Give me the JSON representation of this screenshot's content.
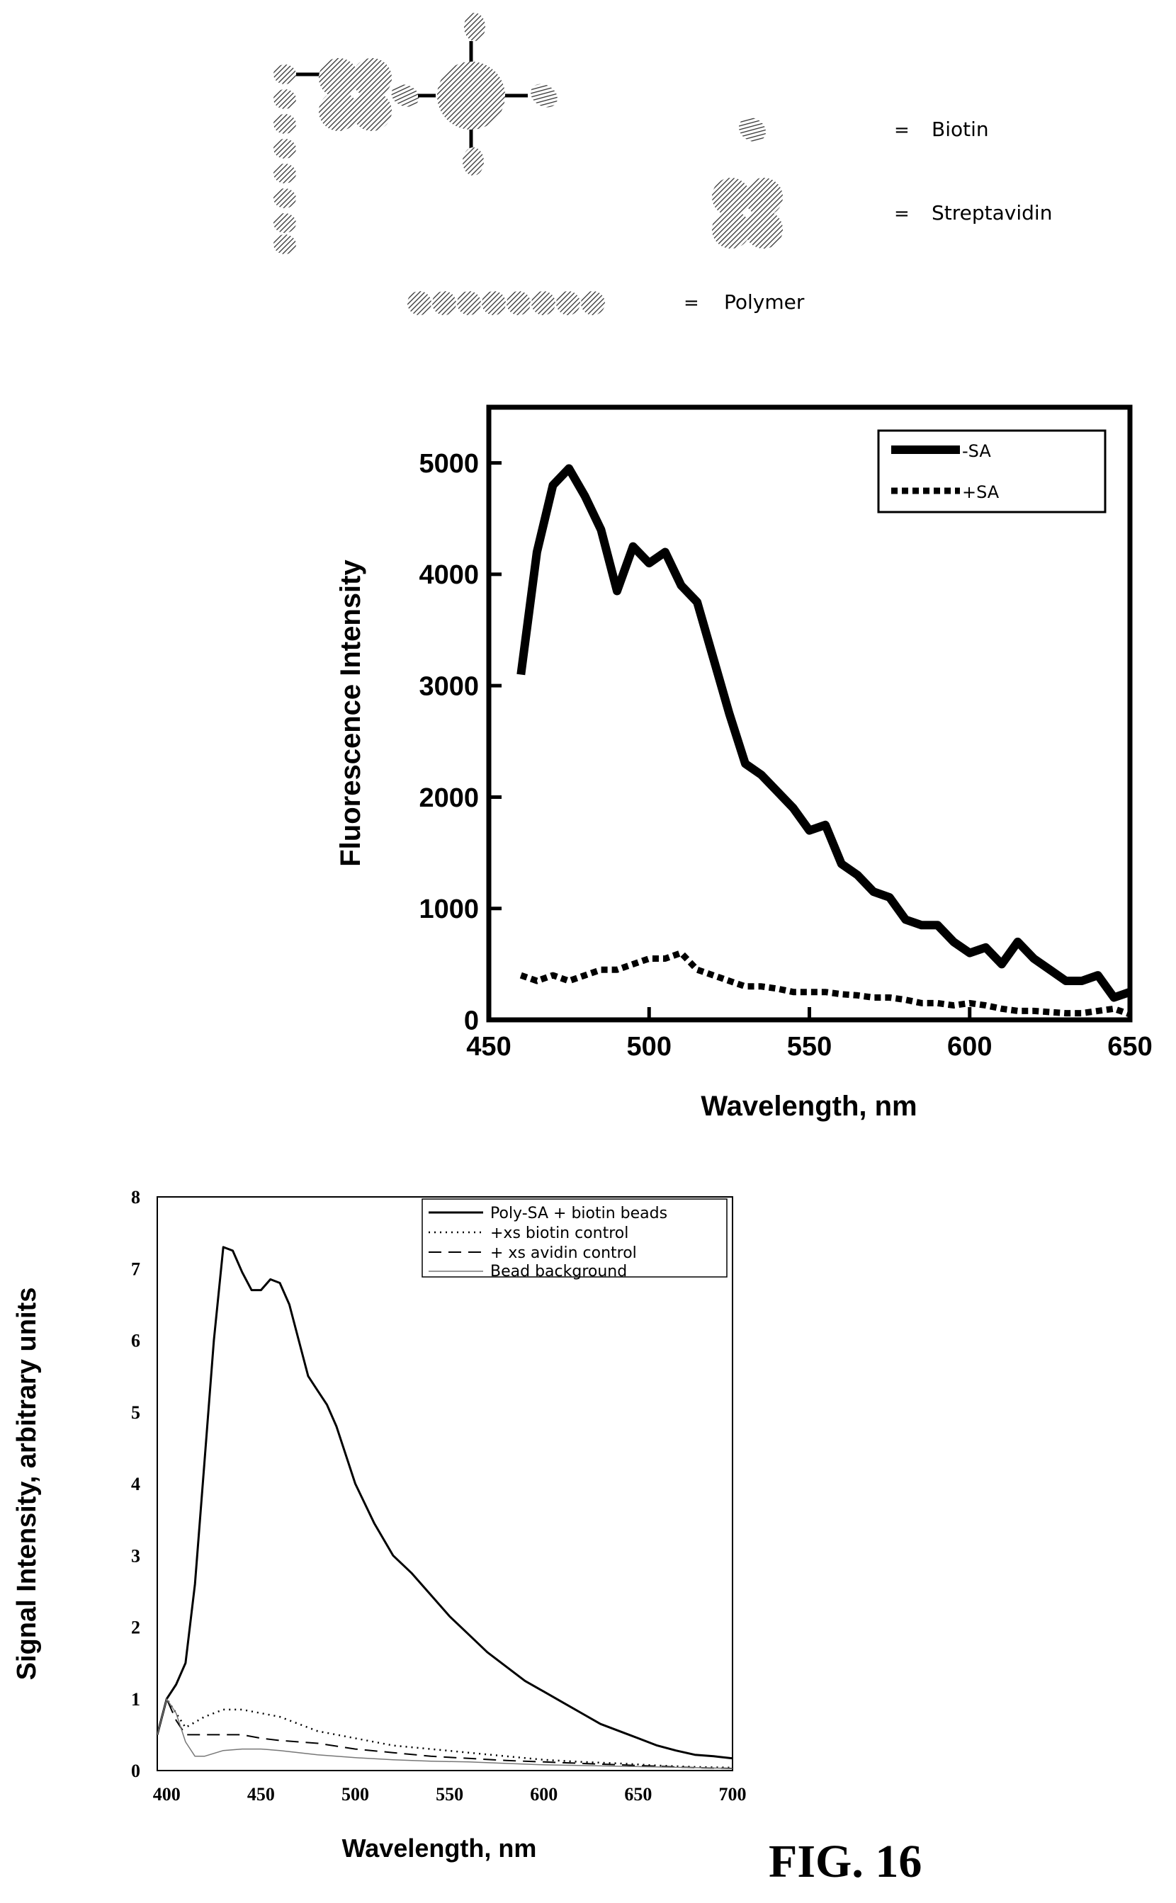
{
  "figure_label": "FIG. 16",
  "legend_key": {
    "biotin": "Biotin",
    "streptavidin": "Streptavidin",
    "polymer": "Polymer",
    "equals": "="
  },
  "colors": {
    "ink": "#000000",
    "hatch": "#555555",
    "background": "#ffffff"
  },
  "chart_data": [
    {
      "type": "line",
      "xlabel": "Wavelength, nm",
      "ylabel": "Fluorescence Intensity",
      "xlim": [
        450,
        650
      ],
      "ylim": [
        0,
        5500
      ],
      "xticks": [
        "450",
        "500",
        "550",
        "600",
        "650"
      ],
      "yticks": [
        "0",
        "1000",
        "2000",
        "3000",
        "4000",
        "5000"
      ],
      "legend_position": "top-right",
      "grid": false,
      "series": [
        {
          "name": "-SA",
          "style": "solid-thick",
          "x": [
            460,
            465,
            470,
            475,
            480,
            485,
            490,
            495,
            500,
            505,
            510,
            515,
            520,
            525,
            530,
            535,
            540,
            545,
            550,
            555,
            560,
            565,
            570,
            575,
            580,
            585,
            590,
            595,
            600,
            605,
            610,
            615,
            620,
            625,
            630,
            635,
            640,
            645,
            650
          ],
          "values": [
            3100,
            4200,
            4800,
            4950,
            4700,
            4400,
            3850,
            4250,
            4100,
            4200,
            3900,
            3750,
            3250,
            2750,
            2300,
            2200,
            2050,
            1900,
            1700,
            1750,
            1400,
            1300,
            1150,
            1100,
            900,
            850,
            850,
            700,
            600,
            650,
            500,
            700,
            550,
            450,
            350,
            350,
            400,
            200,
            250
          ]
        },
        {
          "name": "+SA",
          "style": "dotted-thick",
          "x": [
            460,
            465,
            470,
            475,
            480,
            485,
            490,
            495,
            500,
            505,
            510,
            515,
            520,
            525,
            530,
            535,
            540,
            545,
            550,
            555,
            560,
            565,
            570,
            575,
            580,
            585,
            590,
            595,
            600,
            605,
            610,
            615,
            620,
            625,
            630,
            635,
            640,
            645,
            650
          ],
          "values": [
            400,
            350,
            400,
            350,
            400,
            450,
            450,
            500,
            550,
            550,
            600,
            450,
            400,
            350,
            300,
            300,
            280,
            250,
            250,
            250,
            230,
            220,
            200,
            200,
            180,
            150,
            150,
            130,
            150,
            130,
            100,
            80,
            80,
            70,
            60,
            60,
            80,
            100,
            50
          ]
        }
      ]
    },
    {
      "type": "line",
      "xlabel": "Wavelength, nm",
      "ylabel": "Signal Intensity, arbitrary units",
      "xlim": [
        395,
        700
      ],
      "ylim": [
        0,
        8
      ],
      "xticks": [
        "400",
        "450",
        "500",
        "550",
        "600",
        "650",
        "700"
      ],
      "yticks": [
        "0",
        "1",
        "2",
        "3",
        "4",
        "5",
        "6",
        "7",
        "8"
      ],
      "legend_position": "top-right",
      "grid": false,
      "series": [
        {
          "name": "Poly-SA + biotin beads",
          "style": "solid",
          "x": [
            395,
            400,
            405,
            410,
            415,
            420,
            425,
            430,
            435,
            440,
            445,
            450,
            455,
            460,
            465,
            470,
            475,
            480,
            485,
            490,
            500,
            510,
            520,
            530,
            540,
            550,
            560,
            570,
            580,
            590,
            600,
            610,
            620,
            630,
            640,
            650,
            660,
            670,
            680,
            690,
            700
          ],
          "values": [
            0.5,
            1.0,
            1.2,
            1.5,
            2.6,
            4.3,
            6.0,
            7.3,
            7.25,
            6.95,
            6.7,
            6.7,
            6.85,
            6.8,
            6.5,
            6.0,
            5.5,
            5.3,
            5.1,
            4.8,
            4.0,
            3.45,
            3.0,
            2.75,
            2.45,
            2.15,
            1.9,
            1.65,
            1.45,
            1.25,
            1.1,
            0.95,
            0.8,
            0.65,
            0.55,
            0.45,
            0.35,
            0.28,
            0.22,
            0.2,
            0.17
          ]
        },
        {
          "name": "+xs biotin control",
          "style": "dotted",
          "x": [
            395,
            400,
            405,
            410,
            420,
            430,
            440,
            450,
            460,
            470,
            480,
            500,
            520,
            540,
            560,
            580,
            600,
            620,
            640,
            660,
            680,
            700
          ],
          "values": [
            0.5,
            1.0,
            0.8,
            0.6,
            0.75,
            0.85,
            0.85,
            0.8,
            0.75,
            0.65,
            0.55,
            0.45,
            0.35,
            0.3,
            0.25,
            0.2,
            0.15,
            0.12,
            0.1,
            0.07,
            0.05,
            0.04
          ]
        },
        {
          "name": "+ xs avidin control",
          "style": "dashed",
          "x": [
            395,
            400,
            405,
            410,
            420,
            430,
            440,
            450,
            460,
            470,
            480,
            500,
            520,
            540,
            560,
            580,
            600,
            620,
            640,
            660,
            680,
            700
          ],
          "values": [
            0.5,
            1.0,
            0.7,
            0.5,
            0.5,
            0.5,
            0.5,
            0.45,
            0.42,
            0.4,
            0.38,
            0.3,
            0.25,
            0.2,
            0.17,
            0.14,
            0.12,
            0.1,
            0.08,
            0.06,
            0.04,
            0.03
          ]
        },
        {
          "name": "Bead background",
          "style": "thin-gray",
          "x": [
            395,
            400,
            405,
            410,
            415,
            420,
            430,
            440,
            450,
            460,
            470,
            480,
            500,
            520,
            540,
            560,
            580,
            600,
            620,
            640,
            660,
            680,
            700
          ],
          "values": [
            0.5,
            1.0,
            0.8,
            0.4,
            0.2,
            0.2,
            0.28,
            0.3,
            0.3,
            0.28,
            0.25,
            0.22,
            0.18,
            0.15,
            0.13,
            0.12,
            0.1,
            0.08,
            0.07,
            0.06,
            0.05,
            0.04,
            0.03
          ]
        }
      ]
    }
  ]
}
